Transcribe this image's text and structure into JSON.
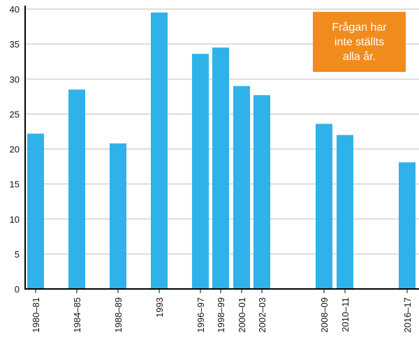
{
  "chart_data": {
    "type": "bar",
    "categories": [
      "1980–81",
      "1984–85",
      "1988–89",
      "1993",
      "1996–97",
      "1998–99",
      "2000–01",
      "2002–03",
      "2008–09",
      "2010–11",
      "2016–17"
    ],
    "values": [
      22.2,
      28.5,
      20.8,
      39.5,
      33.6,
      34.5,
      29,
      27.7,
      23.6,
      22,
      18.1
    ],
    "title": "",
    "xlabel": "",
    "ylabel": "",
    "ylim": [
      0,
      40
    ],
    "yticks": [
      0,
      5,
      10,
      15,
      20,
      25,
      30,
      35,
      40
    ],
    "grid": true,
    "bar_color": "#2fb2ea",
    "annotation": {
      "text": "Frågan har\ninte ställts\nalla år.",
      "color": "#f08c1e"
    }
  }
}
